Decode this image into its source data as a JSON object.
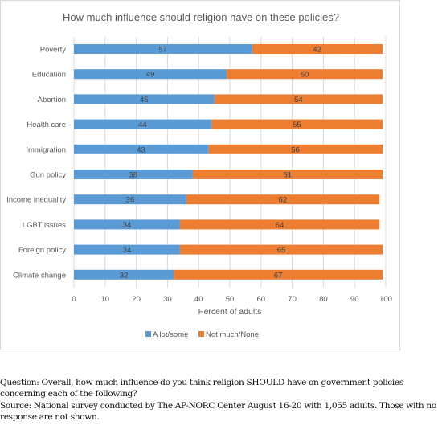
{
  "chart_data": {
    "type": "bar",
    "orientation": "horizontal",
    "stacked": true,
    "title": "How much influence should religion have on these policies?",
    "xlabel": "Percent of adults",
    "ylabel": "",
    "xlim": [
      0,
      100
    ],
    "xticks": [
      0,
      10,
      20,
      30,
      40,
      50,
      60,
      70,
      80,
      90,
      100
    ],
    "categories": [
      "Poverty",
      "Education",
      "Abortion",
      "Health care",
      "Immigration",
      "Gun policy",
      "Income inequality",
      "LGBT issues",
      "Foreign policy",
      "Climate change"
    ],
    "series": [
      {
        "name": "A lot/some",
        "color": "#5b9bd5",
        "values": [
          57,
          49,
          45,
          44,
          43,
          38,
          36,
          34,
          34,
          32
        ]
      },
      {
        "name": "Not much/None",
        "color": "#ed7d31",
        "values": [
          42,
          50,
          54,
          55,
          56,
          61,
          62,
          64,
          65,
          67
        ]
      }
    ],
    "grid": true,
    "legend_position": "bottom"
  },
  "footnote": {
    "question": "Question: Overall, how much influence do you think religion SHOULD have on government policies concerning each of the following?",
    "source": "Source: National survey conducted by The AP-NORC Center August 16-20 with 1,055 adults. Those with no response are not shown."
  }
}
